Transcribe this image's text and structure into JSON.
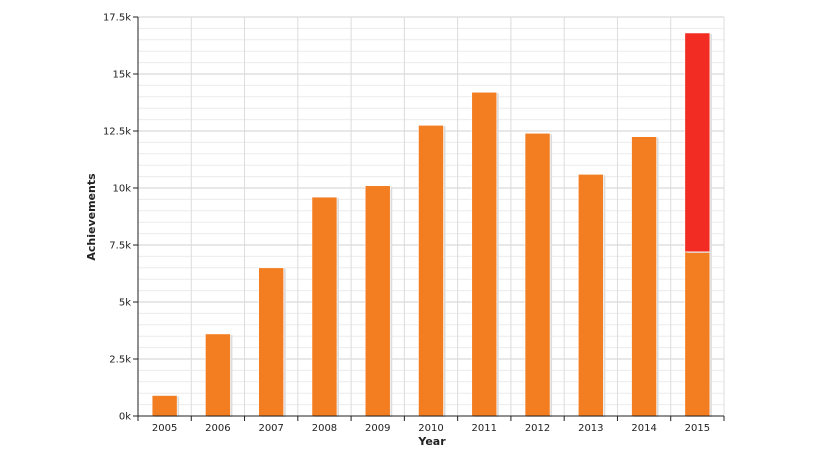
{
  "chart_data": {
    "type": "bar",
    "title": "",
    "xlabel": "Year",
    "ylabel": "Achievements",
    "categories": [
      "2005",
      "2006",
      "2007",
      "2008",
      "2009",
      "2010",
      "2011",
      "2012",
      "2013",
      "2014",
      "2015"
    ],
    "series": [
      {
        "values": [
          900,
          3600,
          6500,
          9600,
          10100,
          12750,
          14200,
          12400,
          10600,
          12250,
          7200
        ],
        "color": "#f37d21"
      },
      {
        "values": [
          0,
          0,
          0,
          0,
          0,
          0,
          0,
          0,
          0,
          0,
          9600
        ],
        "color": "#f22b23"
      }
    ],
    "stacked": true,
    "ylim": [
      0,
      17500
    ],
    "yticks": [
      0,
      2500,
      5000,
      7500,
      10000,
      12500,
      15000,
      17500
    ],
    "ytick_labels": [
      "0k",
      "2.5k",
      "5k",
      "7.5k",
      "10k",
      "12.5k",
      "15k",
      "17.5k"
    ],
    "grid": true,
    "legend": "none"
  }
}
